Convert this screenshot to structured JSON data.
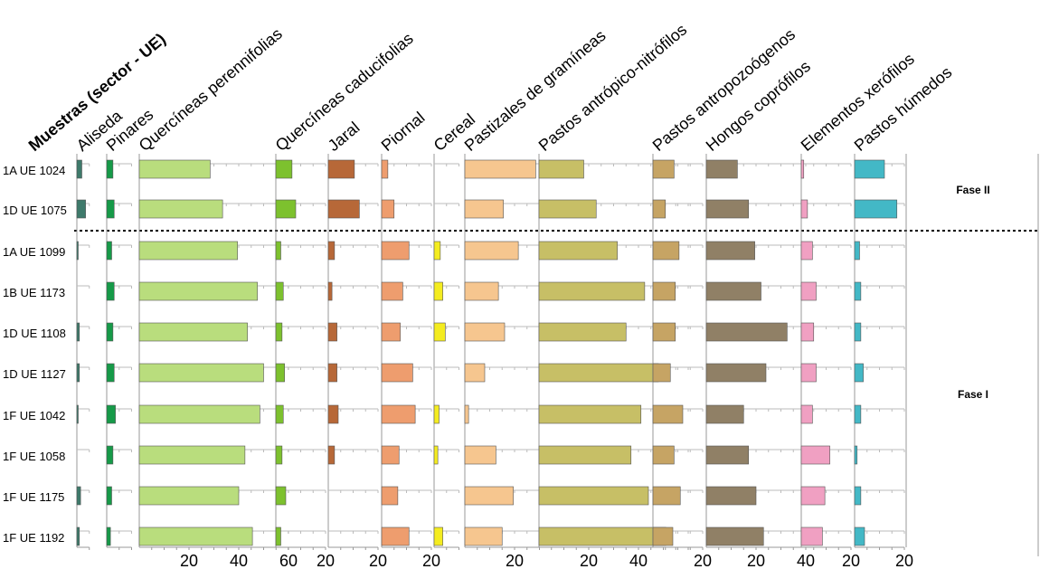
{
  "chart_data": {
    "type": "bar",
    "title": "Muestras (sector - UE)",
    "samples": [
      "1A UE 1024",
      "1D UE 1075",
      "1A UE 1099",
      "1B UE 1173",
      "1D UE 1108",
      "1D UE 1127",
      "1F UE 1042",
      "1F UE 1058",
      "1F UE 1175",
      "1F UE 1192"
    ],
    "phases": [
      {
        "label": "Fase II",
        "rows": [
          0,
          1
        ]
      },
      {
        "label": "Fase I",
        "rows": [
          2,
          3,
          4,
          5,
          6,
          7,
          8,
          9
        ]
      }
    ],
    "series": [
      {
        "name": "Aliseda",
        "color": "#3e7a6b",
        "max": 5,
        "ticks": [],
        "values": [
          2.0,
          3.5,
          0.5,
          0,
          1.0,
          1.0,
          0.5,
          0,
          1.5,
          1.0
        ]
      },
      {
        "name": "Pinares",
        "color": "#169a48",
        "max": 10,
        "ticks": [],
        "values": [
          2.5,
          3.0,
          2.0,
          3.0,
          2.5,
          3.0,
          3.5,
          2.5,
          2.0,
          1.5
        ]
      },
      {
        "name": "Quercíneas perennifolias",
        "color": "#b9dd7d",
        "max": 60,
        "ticks": [
          20,
          40,
          60
        ],
        "values": [
          28.5,
          33.5,
          39.5,
          47.5,
          43.5,
          50.0,
          48.5,
          42.5,
          40.0,
          45.5
        ]
      },
      {
        "name": "Quercíneas caducifolias",
        "color": "#7dc12e",
        "max": 20,
        "ticks": [
          20
        ],
        "values": [
          6.5,
          8.0,
          2.0,
          3.0,
          2.5,
          3.5,
          3.0,
          2.5,
          4.0,
          2.0
        ]
      },
      {
        "name": "Jaral",
        "color": "#b76838",
        "max": 20,
        "ticks": [
          20
        ],
        "values": [
          10.5,
          12.5,
          2.5,
          1.5,
          3.5,
          3.5,
          4.0,
          2.5,
          0,
          0
        ]
      },
      {
        "name": "Piornal",
        "color": "#ee9d6e",
        "max": 20,
        "ticks": [
          20
        ],
        "values": [
          2.5,
          5.0,
          11.0,
          8.5,
          7.5,
          12.5,
          13.5,
          7.0,
          6.5,
          11.0
        ]
      },
      {
        "name": "Cereal",
        "color": "#f4ec20",
        "max": 10,
        "ticks": [],
        "values": [
          0,
          0,
          2.5,
          3.5,
          4.5,
          0,
          2.0,
          1.5,
          0,
          3.5
        ]
      },
      {
        "name": "Pastizales de gramíneas",
        "color": "#f6c68f",
        "max": 30,
        "ticks": [
          20
        ],
        "values": [
          28.5,
          15.5,
          21.5,
          13.5,
          16.0,
          8.0,
          1.5,
          12.5,
          19.5,
          15.0
        ]
      },
      {
        "name": "Pastos antrópico-nitrófilos",
        "color": "#c7bf66",
        "max": 60,
        "ticks": [
          20,
          40
        ],
        "values": [
          18.0,
          23.0,
          31.5,
          42.5,
          35.0,
          48.0,
          41.0,
          37.0,
          44.0,
          51.0
        ]
      },
      {
        "name": "Pastos antropozoógenos",
        "color": "#c6a464",
        "max": 20,
        "ticks": [
          20
        ],
        "values": [
          8.5,
          5.0,
          10.5,
          9.0,
          9.0,
          7.0,
          12.0,
          8.5,
          11.0,
          8.0
        ]
      },
      {
        "name": "Hongos coprófilos",
        "color": "#908066",
        "max": 40,
        "ticks": [
          20,
          40
        ],
        "values": [
          12.5,
          17.0,
          19.5,
          22.0,
          32.5,
          24.0,
          15.0,
          17.0,
          20.0,
          23.0
        ]
      },
      {
        "name": "Elementos xerófilos",
        "color": "#f0a0c2",
        "max": 20,
        "ticks": [
          20
        ],
        "values": [
          1.0,
          2.5,
          4.5,
          6.0,
          5.0,
          6.0,
          4.5,
          11.5,
          9.5,
          8.5
        ]
      },
      {
        "name": "Pastos húmedos",
        "color": "#43b8c6",
        "max": 20,
        "ticks": [
          20
        ],
        "values": [
          12.0,
          17.0,
          2.0,
          2.5,
          2.5,
          3.5,
          2.5,
          1.0,
          2.5,
          4.0
        ]
      }
    ]
  }
}
